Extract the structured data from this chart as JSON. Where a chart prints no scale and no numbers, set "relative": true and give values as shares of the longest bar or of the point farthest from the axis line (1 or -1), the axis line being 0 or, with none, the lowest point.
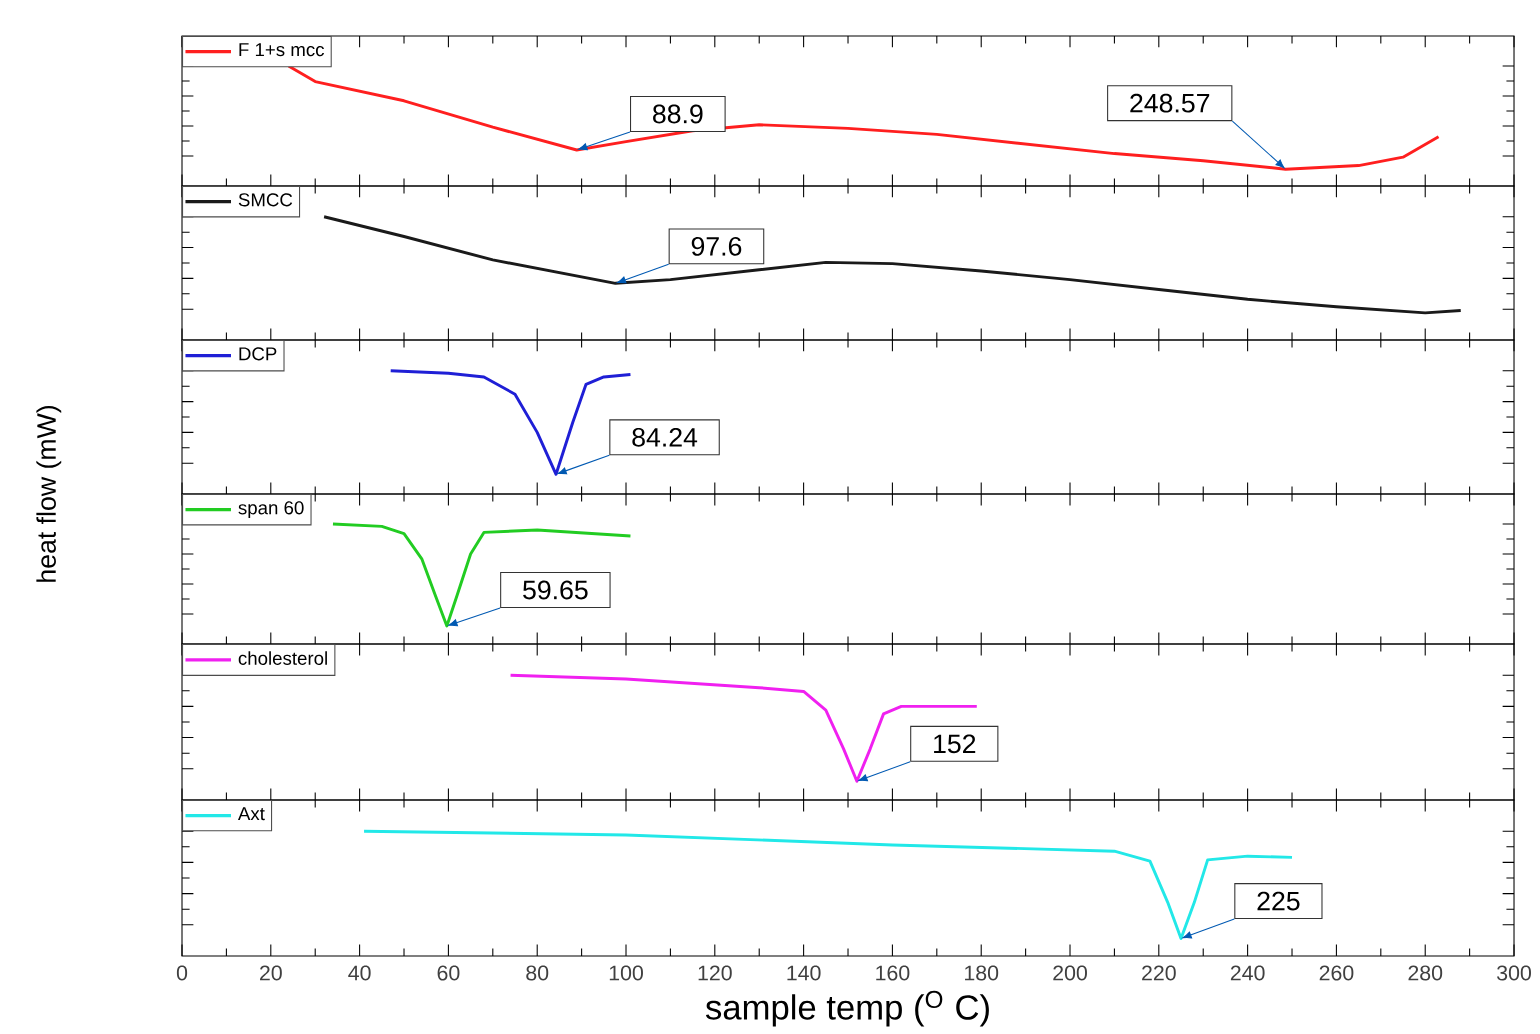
{
  "chart_data": [
    {
      "type": "line",
      "relative": true,
      "xlim": [
        0,
        300
      ],
      "xticks": [
        0,
        20,
        40,
        60,
        80,
        100,
        120,
        140,
        160,
        180,
        200,
        220,
        240,
        260,
        280,
        300
      ],
      "tick_labels": false,
      "legend": "top left",
      "series": [
        {
          "name": "F 1+s mcc",
          "color": "#ff1f1f",
          "x": [
            24,
            30,
            50,
            70,
            88.9,
            100,
            115,
            130,
            150,
            170,
            190,
            210,
            230,
            248.57,
            265,
            275,
            283
          ],
          "values": [
            1,
            0.87,
            0.71,
            0.49,
            0.3,
            0.37,
            0.46,
            0.51,
            0.48,
            0.43,
            0.35,
            0.27,
            0.21,
            0.14,
            0.17,
            0.24,
            0.41
          ]
        }
      ],
      "annotations": [
        {
          "text": "88.9",
          "x": 88.9,
          "y": 0.3
        },
        {
          "text": "248.57",
          "x": 248.57,
          "y": 0.14
        }
      ]
    },
    {
      "type": "line",
      "relative": true,
      "xlim": [
        0,
        300
      ],
      "xticks": [
        0,
        20,
        40,
        60,
        80,
        100,
        120,
        140,
        160,
        180,
        200,
        220,
        240,
        260,
        280,
        300
      ],
      "tick_labels": false,
      "legend": "top left",
      "series": [
        {
          "name": "SMCC",
          "color": "#1a1a1a",
          "x": [
            32,
            50,
            70,
            97.6,
            110,
            130,
            145,
            160,
            180,
            200,
            220,
            240,
            260,
            280,
            288
          ],
          "values": [
            1,
            0.84,
            0.65,
            0.46,
            0.49,
            0.57,
            0.63,
            0.62,
            0.56,
            0.49,
            0.41,
            0.33,
            0.27,
            0.22,
            0.24
          ]
        }
      ],
      "annotations": [
        {
          "text": "97.6",
          "x": 97.6,
          "y": 0.46
        }
      ]
    },
    {
      "type": "line",
      "relative": true,
      "xlim": [
        0,
        300
      ],
      "xticks": [
        0,
        20,
        40,
        60,
        80,
        100,
        120,
        140,
        160,
        180,
        200,
        220,
        240,
        260,
        280,
        300
      ],
      "tick_labels": false,
      "legend": "top left",
      "ylabel": "heat flow (mW)",
      "series": [
        {
          "name": "DCP",
          "color": "#1f1fd6",
          "x": [
            47,
            60,
            68,
            75,
            80,
            84.24,
            88,
            91,
            95,
            101
          ],
          "values": [
            1,
            0.98,
            0.95,
            0.81,
            0.5,
            0.16,
            0.58,
            0.89,
            0.95,
            0.97
          ]
        }
      ],
      "annotations": [
        {
          "text": "84.24",
          "x": 84.24,
          "y": 0.16
        }
      ]
    },
    {
      "type": "line",
      "relative": true,
      "xlim": [
        0,
        300
      ],
      "xticks": [
        0,
        20,
        40,
        60,
        80,
        100,
        120,
        140,
        160,
        180,
        200,
        220,
        240,
        260,
        280,
        300
      ],
      "tick_labels": false,
      "legend": "top left",
      "series": [
        {
          "name": "span 60",
          "color": "#22cc22",
          "x": [
            34,
            45,
            50,
            54,
            57,
            59.65,
            62,
            65,
            68,
            80,
            101
          ],
          "values": [
            1,
            0.98,
            0.92,
            0.71,
            0.41,
            0.15,
            0.41,
            0.75,
            0.93,
            0.95,
            0.9
          ]
        }
      ],
      "annotations": [
        {
          "text": "59.65",
          "x": 59.65,
          "y": 0.15
        }
      ]
    },
    {
      "type": "line",
      "relative": true,
      "xlim": [
        0,
        300
      ],
      "xticks": [
        0,
        20,
        40,
        60,
        80,
        100,
        120,
        140,
        160,
        180,
        200,
        220,
        240,
        260,
        280,
        300
      ],
      "tick_labels": false,
      "legend": "top left",
      "series": [
        {
          "name": "cholesterol",
          "color": "#f020f0",
          "x": [
            74,
            100,
            130,
            140,
            145,
            149,
            152,
            155,
            158,
            162,
            179
          ],
          "values": [
            1,
            0.97,
            0.9,
            0.87,
            0.72,
            0.41,
            0.15,
            0.41,
            0.69,
            0.75,
            0.75
          ]
        }
      ],
      "annotations": [
        {
          "text": "152",
          "x": 152,
          "y": 0.15
        }
      ]
    },
    {
      "type": "line",
      "relative": true,
      "xlim": [
        0,
        300
      ],
      "xticks": [
        0,
        20,
        40,
        60,
        80,
        100,
        120,
        140,
        160,
        180,
        200,
        220,
        240,
        260,
        280,
        300
      ],
      "tick_labels": "x",
      "legend": "top left",
      "xlabel": "sample temp ($^{O}$ C)",
      "series": [
        {
          "name": "Axt",
          "color": "#22e8e8",
          "x": [
            41,
            100,
            160,
            210,
            218,
            222,
            225,
            228,
            231,
            240,
            250
          ],
          "values": [
            1,
            0.97,
            0.89,
            0.84,
            0.76,
            0.43,
            0.14,
            0.43,
            0.77,
            0.8,
            0.79
          ]
        }
      ],
      "annotations": [
        {
          "text": "225",
          "x": 225,
          "y": 0.14
        }
      ]
    }
  ]
}
